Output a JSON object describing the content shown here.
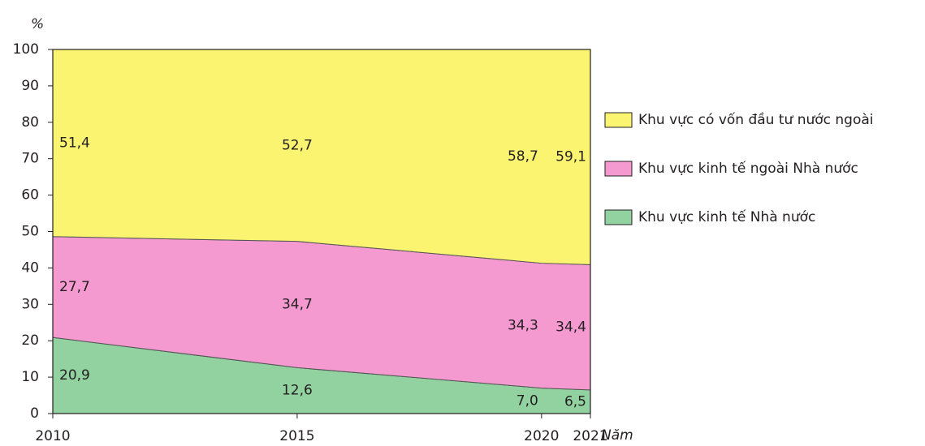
{
  "chart_data": {
    "type": "stacked-area",
    "ylabel": "%",
    "xlabel": "Năm",
    "x": [
      2010,
      2015,
      2020,
      2021
    ],
    "xlim": [
      2010,
      2021
    ],
    "xticks": [
      2010,
      2015,
      2020,
      2021
    ],
    "ylim": [
      0,
      100
    ],
    "yticks": [
      0,
      10,
      20,
      30,
      40,
      50,
      60,
      70,
      80,
      90,
      100
    ],
    "series": [
      {
        "name": "Khu vực kinh tế Nhà nước",
        "color": "#92d2a0",
        "values": [
          20.9,
          12.6,
          7.0,
          6.5
        ],
        "value_labels": [
          "20,9",
          "12,6",
          "7,0",
          "6,5"
        ]
      },
      {
        "name": "Khu vực kinh tế ngoài Nhà nước",
        "color": "#f49ad0",
        "values": [
          27.7,
          34.7,
          34.3,
          34.4
        ],
        "value_labels": [
          "27,7",
          "34,7",
          "34,3",
          "34,4"
        ]
      },
      {
        "name": "Khu vực có vốn đầu tư nước ngoài",
        "color": "#faf471",
        "values": [
          51.4,
          52.7,
          58.7,
          59.1
        ],
        "value_labels": [
          "51,4",
          "52,7",
          "58,7",
          "59,1"
        ]
      }
    ]
  }
}
